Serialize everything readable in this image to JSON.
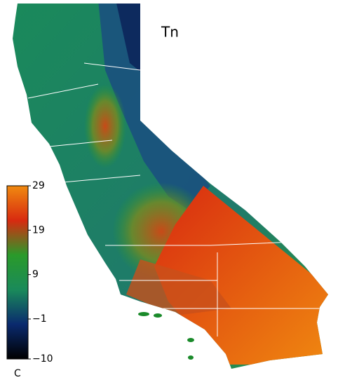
{
  "title": "Tn",
  "colorbar": {
    "lim": [
      -10,
      29
    ],
    "ticks": [
      29,
      19,
      9,
      {
        "value": -1,
        "label": "−1"
      },
      {
        "value": -10,
        "label": "−10"
      }
    ],
    "unit": "C",
    "colors": [
      "#000000",
      "#0a2a6e",
      "#1a8a5a",
      "#2a9a2a",
      "#d82a10",
      "#f08a10"
    ]
  }
}
